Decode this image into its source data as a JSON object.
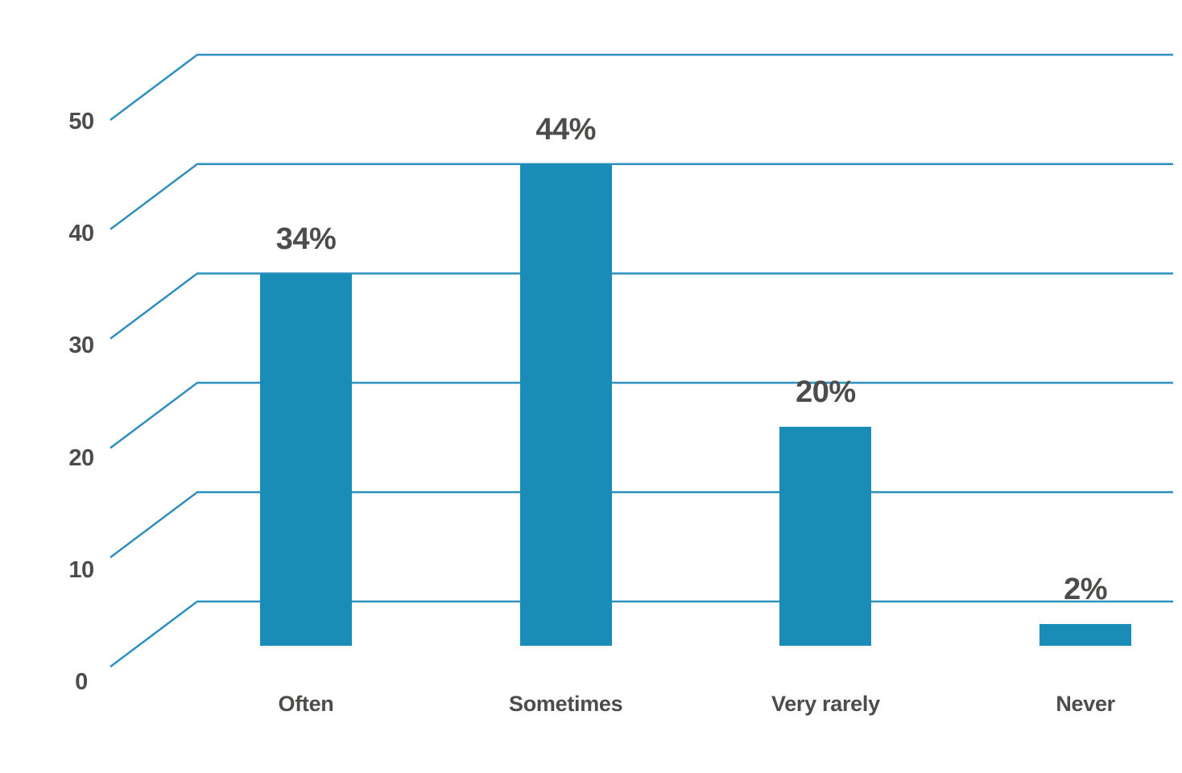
{
  "chart_data": {
    "type": "bar",
    "title": "",
    "xlabel": "",
    "ylabel": "",
    "categories": [
      "Often",
      "Sometimes",
      "Very rarely",
      "Never"
    ],
    "values": [
      34,
      44,
      20,
      2
    ],
    "value_labels": [
      "34%",
      "44%",
      "20%",
      "2%"
    ],
    "y_ticks": [
      0,
      10,
      20,
      30,
      40,
      50
    ],
    "ylim": [
      0,
      50
    ],
    "legend_position": "none",
    "grid": "horizontal gridlines with diagonal left connectors, no vertical axis line",
    "colors": {
      "bar": "#1A8CB8",
      "gridline": "#2D90BE",
      "label_text": "#4D4C4A",
      "background": "#FFFFFF"
    }
  }
}
